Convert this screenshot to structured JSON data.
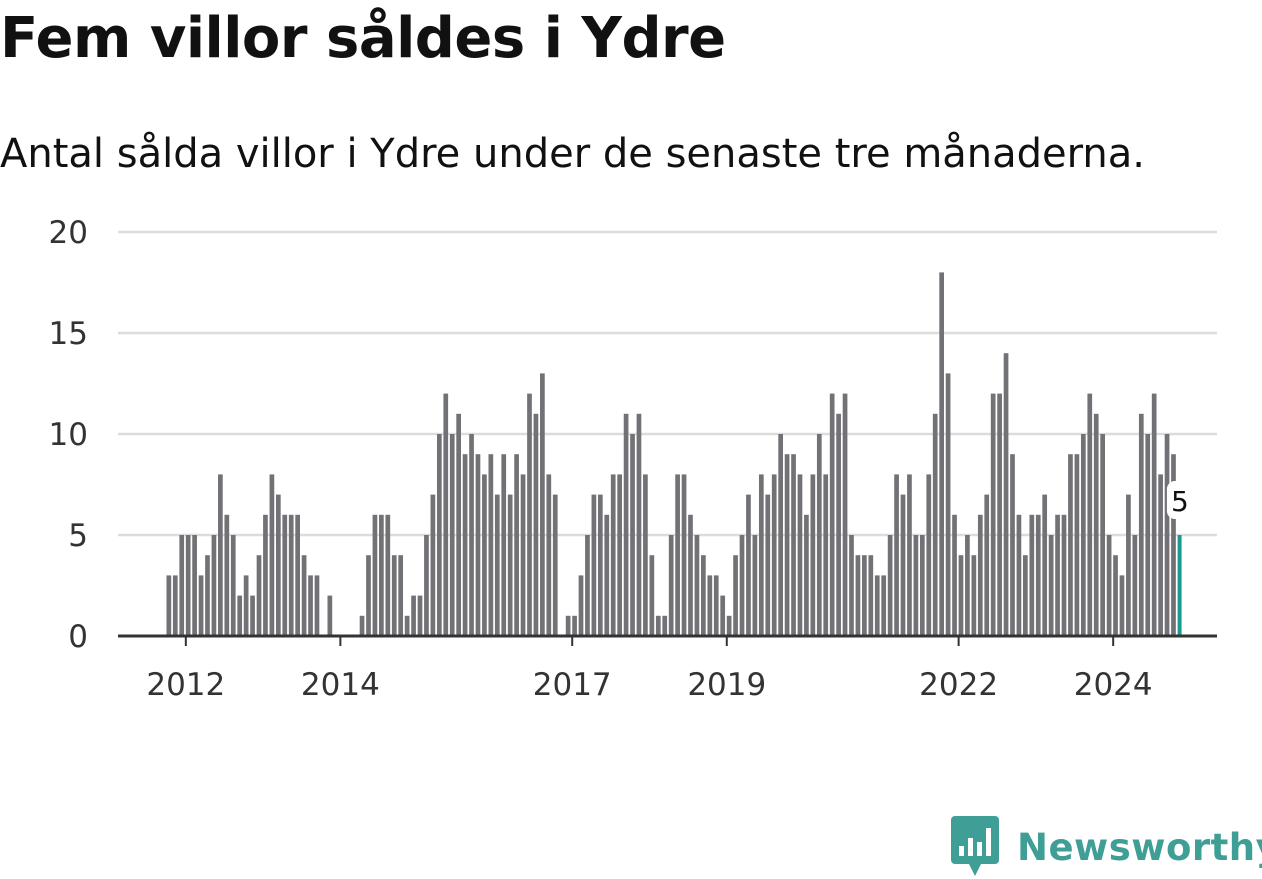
{
  "title": "Fem villor såldes i Ydre",
  "subtitle": "Antal sålda villor i Ydre under de senaste tre månaderna.",
  "brand": {
    "name": "Newsworthy"
  },
  "colors": {
    "bar": "#727176",
    "highlight": "#1a9a90",
    "grid": "#dcdcdc",
    "axis": "#333333",
    "brand": "#3f9e95"
  },
  "chart_data": {
    "type": "bar",
    "x_start": "2011-10",
    "x_interval": "month",
    "values": [
      3,
      3,
      5,
      5,
      5,
      3,
      4,
      5,
      8,
      6,
      5,
      2,
      3,
      2,
      4,
      6,
      8,
      7,
      6,
      6,
      6,
      4,
      3,
      3,
      0,
      2,
      0,
      0,
      0,
      0,
      1,
      4,
      6,
      6,
      6,
      4,
      4,
      1,
      2,
      2,
      5,
      7,
      10,
      12,
      10,
      11,
      9,
      10,
      9,
      8,
      9,
      7,
      9,
      7,
      9,
      8,
      12,
      11,
      13,
      8,
      7,
      0,
      1,
      1,
      3,
      5,
      7,
      7,
      6,
      8,
      8,
      11,
      10,
      11,
      8,
      4,
      1,
      1,
      5,
      8,
      8,
      6,
      5,
      4,
      3,
      3,
      2,
      1,
      4,
      5,
      7,
      5,
      8,
      7,
      8,
      10,
      9,
      9,
      8,
      6,
      8,
      10,
      8,
      12,
      11,
      12,
      5,
      4,
      4,
      4,
      3,
      3,
      5,
      8,
      7,
      8,
      5,
      5,
      8,
      11,
      18,
      13,
      6,
      4,
      5,
      4,
      6,
      7,
      12,
      12,
      14,
      9,
      6,
      4,
      6,
      6,
      7,
      5,
      6,
      6,
      9,
      9,
      10,
      12,
      11,
      10,
      5,
      4,
      3,
      7,
      5,
      11,
      10,
      12,
      8,
      10,
      9,
      5
    ],
    "highlight_last": true,
    "highlight_label": "5",
    "x_ticks": [
      "2012",
      "2014",
      "2017",
      "2019",
      "2022",
      "2024"
    ],
    "y_ticks": [
      "0",
      "5",
      "10",
      "15",
      "20"
    ],
    "ylim": [
      0,
      20
    ],
    "grid": true,
    "legend": "none"
  }
}
